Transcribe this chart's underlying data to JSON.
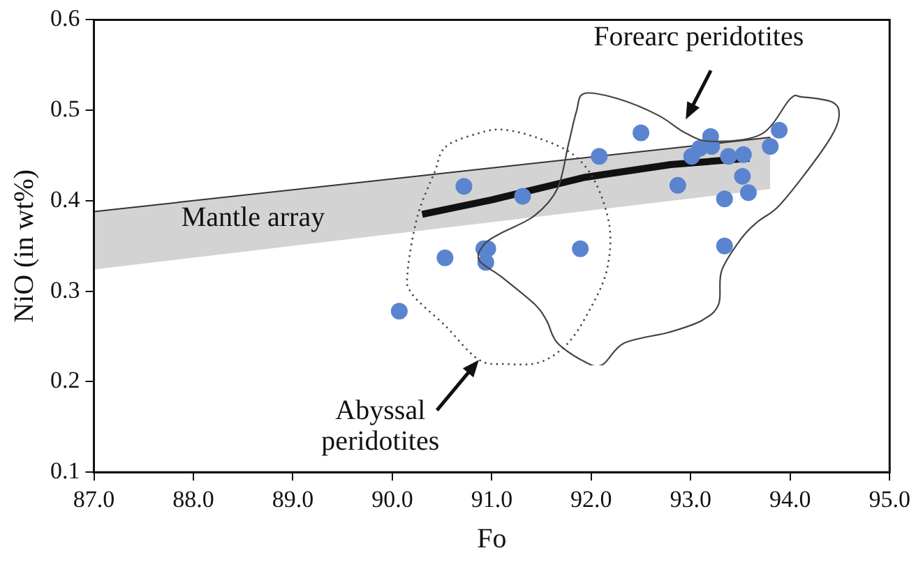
{
  "chart_data": {
    "type": "scatter",
    "xlabel": "Fo",
    "ylabel": "NiO (in wt%)",
    "xlim": [
      87,
      95
    ],
    "xticks": [
      {
        "value": 87,
        "label": "87.0"
      },
      {
        "value": 88,
        "label": "88.0"
      },
      {
        "value": 89,
        "label": "89.0"
      },
      {
        "value": 90,
        "label": "90.0"
      },
      {
        "value": 91,
        "label": "91.0"
      },
      {
        "value": 92,
        "label": "92.0"
      },
      {
        "value": 93,
        "label": "93.0"
      },
      {
        "value": 94,
        "label": "94.0"
      },
      {
        "value": 95,
        "label": "95.0"
      }
    ],
    "ylim": [
      0.1,
      0.6
    ],
    "yticks": [
      0.1,
      0.2,
      0.3,
      0.4,
      0.5,
      0.6
    ],
    "grid": false,
    "legend": false,
    "series": [
      {
        "type": "line",
        "color": "#333333",
        "line_style": "solid",
        "x": [
          87,
          93.8
        ],
        "values": [
          0.388,
          0.47
        ],
        "lower": [
          0.324,
          0.413
        ],
        "upper": [
          0.388,
          0.47
        ]
      },
      {
        "type": "line",
        "color": "#111111",
        "line_style": "solid",
        "marker": "none",
        "x": [
          90.3,
          91.0,
          91.94,
          92.8,
          93.59
        ],
        "values": [
          0.385,
          0.401,
          0.426,
          0.44,
          0.447
        ]
      },
      {
        "color": "#5b84d0",
        "marker": "circle",
        "x": [
          90.07,
          90.53,
          90.72,
          90.92,
          90.96,
          90.94,
          91.31,
          91.89,
          92.08,
          92.5,
          92.87,
          93.01,
          93.09,
          93.2,
          93.21,
          93.34,
          93.34,
          93.38,
          93.53,
          93.52,
          93.58,
          93.8,
          93.89
        ],
        "values": [
          0.278,
          0.337,
          0.416,
          0.347,
          0.347,
          0.332,
          0.405,
          0.347,
          0.449,
          0.475,
          0.417,
          0.449,
          0.458,
          0.471,
          0.46,
          0.402,
          0.35,
          0.449,
          0.451,
          0.427,
          0.409,
          0.46,
          0.478
        ]
      }
    ],
    "annotations": [
      "Forearc peridotites",
      "Abyssal peridotites",
      "Mantle array"
    ]
  }
}
